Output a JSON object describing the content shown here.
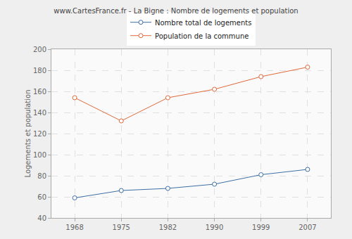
{
  "chart_data": {
    "type": "line",
    "title": "www.CartesFrance.fr - La Bigne : Nombre de logements et population",
    "y_label": "Logements et population",
    "categories": [
      "1968",
      "1975",
      "1982",
      "1990",
      "1999",
      "2007"
    ],
    "series": [
      {
        "name": "Nombre total de logements",
        "color": "#3e6fa3",
        "values": [
          59,
          66,
          68,
          72,
          81,
          86
        ]
      },
      {
        "name": "Population de la commune",
        "color": "#e0693b",
        "values": [
          154,
          132,
          154,
          162,
          174,
          183
        ]
      }
    ],
    "ylim": [
      40,
      200
    ],
    "yticks": [
      40,
      60,
      80,
      100,
      120,
      140,
      160,
      180,
      200
    ],
    "grid": true,
    "legend": "top",
    "marker": "circle",
    "line_style": "solid"
  }
}
